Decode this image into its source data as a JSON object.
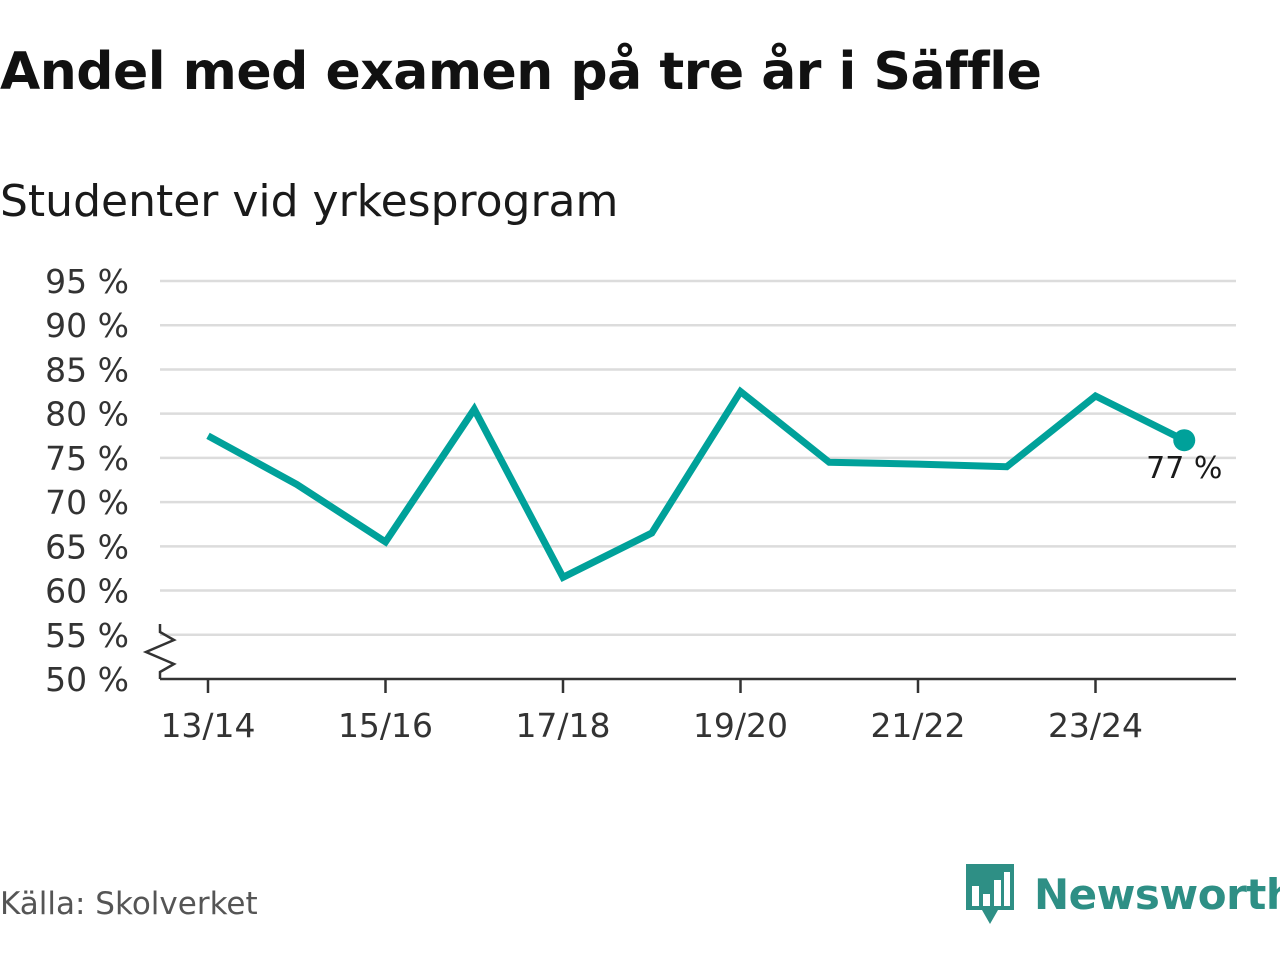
{
  "chart_data": {
    "type": "line",
    "title": "Andel med examen på tre år i Säffle",
    "subtitle": "Studenter vid yrkesprogram",
    "x": [
      "13/14",
      "14/15",
      "15/16",
      "16/17",
      "17/18",
      "18/19",
      "19/20",
      "20/21",
      "21/22",
      "22/23",
      "23/24",
      "24/25"
    ],
    "x_tick_labels": [
      "13/14",
      "15/16",
      "17/18",
      "19/20",
      "21/22",
      "23/24"
    ],
    "series": [
      {
        "name": "Studenter vid yrkesprogram",
        "color": "#00a19a",
        "values": [
          77.5,
          72,
          65.5,
          80.5,
          61.5,
          66.5,
          82.5,
          74.5,
          74.3,
          74,
          82,
          77
        ]
      }
    ],
    "ylim": [
      50,
      95
    ],
    "y_ticks": [
      50,
      55,
      60,
      65,
      70,
      75,
      80,
      85,
      90,
      95
    ],
    "y_tick_labels": [
      "50 %",
      "55 %",
      "60 %",
      "65 %",
      "70 %",
      "75 %",
      "80 %",
      "85 %",
      "90 %",
      "95 %"
    ],
    "y_axis_break": true,
    "xlabel": "",
    "ylabel": "",
    "grid": true,
    "last_point_label": "77 %"
  },
  "footer": {
    "source": "Källa: Skolverket",
    "brand": "Newsworthy",
    "brand_color": "#2e8f85"
  }
}
